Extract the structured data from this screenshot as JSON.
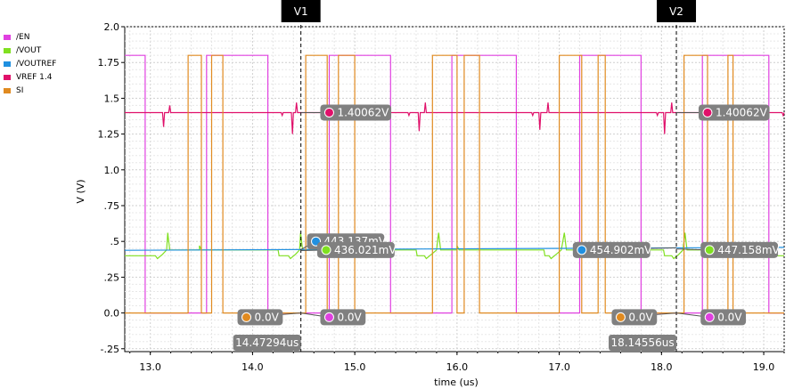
{
  "chart_data": {
    "type": "line",
    "xlabel": "time (us)",
    "ylabel": "V (V)",
    "xlim": [
      12.75,
      19.2
    ],
    "ylim": [
      -0.27,
      2.0
    ],
    "x_ticks": [
      13.0,
      14.0,
      15.0,
      16.0,
      17.0,
      18.0,
      19.0
    ],
    "x_tick_labels": [
      "13.0",
      "14.0",
      "15.0",
      "16.0",
      "17.0",
      "18.0",
      "19.0"
    ],
    "y_ticks": [
      2.0,
      1.75,
      1.5,
      1.25,
      1.0,
      0.75,
      0.5,
      0.25,
      0.0,
      -0.25
    ],
    "y_tick_labels": [
      "2.0",
      "1.75",
      "1.5",
      "1.25",
      "1.0",
      ".75",
      ".5",
      ".25",
      "0.0",
      "-.25"
    ],
    "grid": true,
    "legend_position": "top-left",
    "series": [
      {
        "name": "/EN",
        "color": "#e040e0",
        "points": [
          [
            12.75,
            1.8
          ],
          [
            12.95,
            1.8
          ],
          [
            12.95,
            0.0
          ],
          [
            13.55,
            0.0
          ],
          [
            13.55,
            1.8
          ],
          [
            14.15,
            1.8
          ],
          [
            14.15,
            0.0
          ],
          [
            14.75,
            0.0
          ],
          [
            14.75,
            1.8
          ],
          [
            15.35,
            1.8
          ],
          [
            15.35,
            0.0
          ],
          [
            15.95,
            0.0
          ],
          [
            15.95,
            1.8
          ],
          [
            16.58,
            1.8
          ],
          [
            16.58,
            0.0
          ],
          [
            17.2,
            0.0
          ],
          [
            17.2,
            1.8
          ],
          [
            17.8,
            1.8
          ],
          [
            17.8,
            0.0
          ],
          [
            18.4,
            0.0
          ],
          [
            18.4,
            1.8
          ],
          [
            19.05,
            1.8
          ],
          [
            19.05,
            0.0
          ],
          [
            19.2,
            0.0
          ]
        ]
      },
      {
        "name": "/VOUT",
        "color": "#80e020",
        "points": [
          [
            12.75,
            0.4
          ],
          [
            13.05,
            0.4
          ],
          [
            13.07,
            0.38
          ],
          [
            13.12,
            0.41
          ],
          [
            13.16,
            0.44
          ],
          [
            13.17,
            0.56
          ],
          [
            13.19,
            0.44
          ],
          [
            13.48,
            0.44
          ],
          [
            13.48,
            0.47
          ],
          [
            13.5,
            0.44
          ],
          [
            14.25,
            0.44
          ],
          [
            14.26,
            0.4
          ],
          [
            14.35,
            0.4
          ],
          [
            14.37,
            0.38
          ],
          [
            14.42,
            0.41
          ],
          [
            14.46,
            0.44
          ],
          [
            14.47,
            0.56
          ],
          [
            14.49,
            0.44
          ],
          [
            14.72,
            0.44
          ],
          [
            14.72,
            0.47
          ],
          [
            14.74,
            0.44
          ],
          [
            15.6,
            0.44
          ],
          [
            15.61,
            0.4
          ],
          [
            15.68,
            0.4
          ],
          [
            15.7,
            0.38
          ],
          [
            15.75,
            0.41
          ],
          [
            15.8,
            0.44
          ],
          [
            15.82,
            0.56
          ],
          [
            15.84,
            0.44
          ],
          [
            16.0,
            0.44
          ],
          [
            16.0,
            0.47
          ],
          [
            16.02,
            0.44
          ],
          [
            16.85,
            0.44
          ],
          [
            16.86,
            0.4
          ],
          [
            16.9,
            0.4
          ],
          [
            16.92,
            0.38
          ],
          [
            16.97,
            0.41
          ],
          [
            17.02,
            0.44
          ],
          [
            17.05,
            0.56
          ],
          [
            17.07,
            0.44
          ],
          [
            17.2,
            0.44
          ],
          [
            17.2,
            0.47
          ],
          [
            17.22,
            0.44
          ],
          [
            18.02,
            0.44
          ],
          [
            18.03,
            0.4
          ],
          [
            18.1,
            0.4
          ],
          [
            18.12,
            0.38
          ],
          [
            18.17,
            0.41
          ],
          [
            18.21,
            0.44
          ],
          [
            18.23,
            0.56
          ],
          [
            18.25,
            0.44
          ],
          [
            18.4,
            0.44
          ],
          [
            18.4,
            0.47
          ],
          [
            18.42,
            0.44
          ],
          [
            19.05,
            0.44
          ],
          [
            19.06,
            0.4
          ],
          [
            19.2,
            0.4
          ]
        ]
      },
      {
        "name": "/VOUTREF",
        "color": "#2090e0",
        "points": [
          [
            12.75,
            0.438
          ],
          [
            19.2,
            0.458
          ]
        ]
      },
      {
        "name": "VREF 1.4",
        "color": "#e0106a",
        "points": [
          [
            12.75,
            1.4
          ],
          [
            13.12,
            1.4
          ],
          [
            13.13,
            1.3
          ],
          [
            13.14,
            1.4
          ],
          [
            13.18,
            1.4
          ],
          [
            13.19,
            1.45
          ],
          [
            13.2,
            1.4
          ],
          [
            14.28,
            1.4
          ],
          [
            14.29,
            1.38
          ],
          [
            14.3,
            1.4
          ],
          [
            14.38,
            1.4
          ],
          [
            14.39,
            1.25
          ],
          [
            14.4,
            1.4
          ],
          [
            14.42,
            1.4
          ],
          [
            14.43,
            1.47
          ],
          [
            14.44,
            1.4
          ],
          [
            15.52,
            1.4
          ],
          [
            15.53,
            1.38
          ],
          [
            15.54,
            1.4
          ],
          [
            15.62,
            1.4
          ],
          [
            15.63,
            1.27
          ],
          [
            15.64,
            1.4
          ],
          [
            15.68,
            1.4
          ],
          [
            15.69,
            1.47
          ],
          [
            15.7,
            1.4
          ],
          [
            16.73,
            1.4
          ],
          [
            16.74,
            1.38
          ],
          [
            16.75,
            1.4
          ],
          [
            16.8,
            1.4
          ],
          [
            16.81,
            1.28
          ],
          [
            16.82,
            1.4
          ],
          [
            16.88,
            1.4
          ],
          [
            16.89,
            1.47
          ],
          [
            16.9,
            1.4
          ],
          [
            17.95,
            1.4
          ],
          [
            17.96,
            1.38
          ],
          [
            17.97,
            1.4
          ],
          [
            18.02,
            1.4
          ],
          [
            18.03,
            1.25
          ],
          [
            18.04,
            1.4
          ],
          [
            18.09,
            1.4
          ],
          [
            18.1,
            1.47
          ],
          [
            18.11,
            1.4
          ],
          [
            19.18,
            1.4
          ],
          [
            19.19,
            1.38
          ],
          [
            19.2,
            1.4
          ]
        ]
      },
      {
        "name": "SI",
        "color": "#e08a20",
        "points": [
          [
            12.75,
            0.0
          ],
          [
            13.37,
            0.0
          ],
          [
            13.37,
            1.8
          ],
          [
            13.5,
            1.8
          ],
          [
            13.5,
            0.0
          ],
          [
            13.6,
            0.0
          ],
          [
            13.6,
            1.8
          ],
          [
            13.71,
            1.8
          ],
          [
            13.71,
            0.0
          ],
          [
            14.52,
            0.0
          ],
          [
            14.52,
            1.8
          ],
          [
            14.73,
            1.8
          ],
          [
            14.73,
            0.0
          ],
          [
            14.84,
            0.0
          ],
          [
            14.84,
            1.8
          ],
          [
            15.0,
            1.8
          ],
          [
            15.0,
            0.0
          ],
          [
            15.76,
            0.0
          ],
          [
            15.76,
            1.8
          ],
          [
            16.0,
            1.8
          ],
          [
            16.0,
            0.0
          ],
          [
            16.07,
            0.0
          ],
          [
            16.07,
            1.8
          ],
          [
            16.22,
            1.8
          ],
          [
            16.22,
            0.0
          ],
          [
            17.0,
            0.0
          ],
          [
            17.0,
            1.8
          ],
          [
            17.22,
            1.8
          ],
          [
            17.22,
            0.0
          ],
          [
            17.38,
            0.0
          ],
          [
            17.38,
            1.8
          ],
          [
            17.45,
            1.8
          ],
          [
            17.45,
            0.0
          ],
          [
            18.22,
            0.0
          ],
          [
            18.22,
            1.8
          ],
          [
            18.45,
            1.8
          ],
          [
            18.45,
            0.0
          ],
          [
            18.65,
            0.0
          ],
          [
            18.65,
            1.8
          ],
          [
            18.7,
            1.8
          ],
          [
            18.7,
            0.0
          ],
          [
            19.2,
            0.0
          ]
        ]
      }
    ],
    "cursors": [
      {
        "label": "V1",
        "x": 14.47294,
        "readout": "14.47294us"
      },
      {
        "label": "V2",
        "x": 18.14556,
        "readout": "18.14556us"
      }
    ],
    "markers": [
      {
        "text": "1.40062V",
        "color": "#e0106a",
        "x": 14.47294,
        "y": 1.4,
        "at": [
          14.75,
          1.4
        ]
      },
      {
        "text": "443.137mV",
        "color": "#2090e0",
        "x": 14.47294,
        "y": 0.443,
        "at": [
          14.62,
          0.5
        ]
      },
      {
        "text": "436.021mV",
        "color": "#80e020",
        "x": 14.47294,
        "y": 0.436,
        "at": [
          14.72,
          0.44
        ]
      },
      {
        "text": "0.0V",
        "color": "#e08a20",
        "x": 14.47294,
        "y": 0.0,
        "at": [
          13.94,
          -0.03
        ]
      },
      {
        "text": "0.0V",
        "color": "#e040e0",
        "x": 14.47294,
        "y": 0.0,
        "at": [
          14.75,
          -0.03
        ]
      },
      {
        "text": "1.40062V",
        "color": "#e0106a",
        "x": 18.14556,
        "y": 1.4,
        "at": [
          18.45,
          1.4
        ]
      },
      {
        "text": "454.902mV",
        "color": "#2090e0",
        "x": 18.14556,
        "y": 0.455,
        "at": [
          17.22,
          0.44
        ]
      },
      {
        "text": "447.158mV",
        "color": "#80e020",
        "x": 18.14556,
        "y": 0.447,
        "at": [
          18.47,
          0.44
        ]
      },
      {
        "text": "0.0V",
        "color": "#e08a20",
        "x": 18.14556,
        "y": 0.0,
        "at": [
          17.6,
          -0.03
        ]
      },
      {
        "text": "0.0V",
        "color": "#e040e0",
        "x": 18.14556,
        "y": 0.0,
        "at": [
          18.47,
          -0.03
        ]
      }
    ]
  }
}
